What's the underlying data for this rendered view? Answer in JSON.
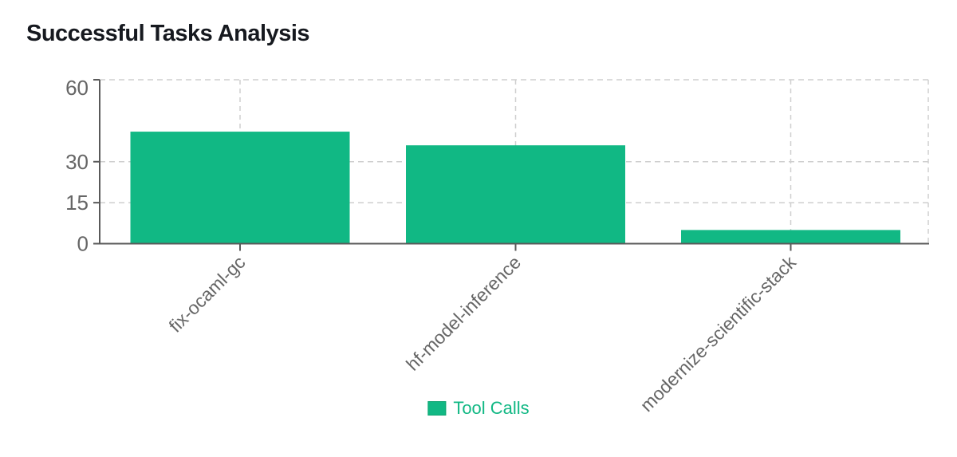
{
  "chart_data": {
    "type": "bar",
    "title": "Successful Tasks Analysis",
    "categories": [
      "fix-ocaml-gc",
      "hf-model-inference",
      "modernize-scientific-stack"
    ],
    "series": [
      {
        "name": "Tool Calls",
        "values": [
          41,
          36,
          5
        ]
      }
    ],
    "xlabel": "",
    "ylabel": "",
    "ylim": [
      0,
      60
    ],
    "yticks": [
      0,
      15,
      30,
      60
    ],
    "grid": true,
    "legend_position": "bottom",
    "colors": {
      "bar": "#11b884",
      "bar_edge": "#0ea371",
      "legend_text": "#11b884",
      "grid_line": "#cfcfcf",
      "axis_line": "#5a5a5a",
      "tick_text": "#666666",
      "title_text": "#16191f"
    }
  }
}
